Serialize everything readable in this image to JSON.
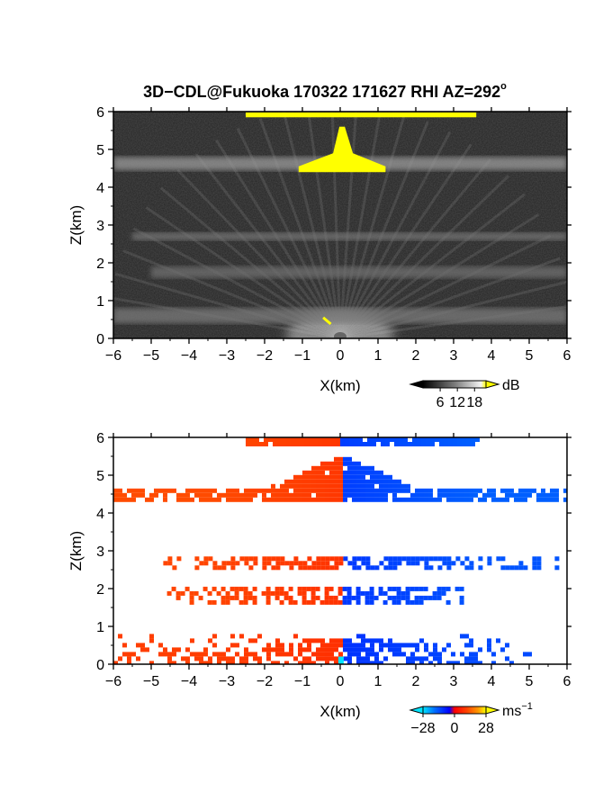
{
  "title_main": "3D−CDL@Fukuoka 170322 171627 RHI AZ=292",
  "title_degree": "o",
  "chart_data": [
    {
      "type": "heatmap",
      "quantity": "reflectivity",
      "xlabel": "X(km)",
      "ylabel": "Z(km)",
      "xlim": [
        -6,
        6
      ],
      "ylim": [
        0,
        6
      ],
      "xticks": [
        "−6",
        "−5",
        "−4",
        "−3",
        "−2",
        "−1",
        "0",
        "1",
        "2",
        "3",
        "4",
        "5",
        "6"
      ],
      "yticks": [
        "0",
        "1",
        "2",
        "3",
        "4",
        "5",
        "6"
      ],
      "colorbar": {
        "unit": "dB",
        "ticks": [
          "6",
          "12",
          "18"
        ],
        "range": [
          0,
          22
        ]
      },
      "layers": [
        {
          "z_low": 5.85,
          "z_high": 6.0,
          "x_min": -2.5,
          "x_max": 3.6,
          "value": 21
        },
        {
          "z_low": 4.45,
          "z_high": 4.8,
          "x_min": -6.0,
          "x_max": 6.0,
          "value": 13
        },
        {
          "z_low": 4.4,
          "z_high": 5.6,
          "x_min": -1.1,
          "x_max": 1.2,
          "value": 21
        },
        {
          "z_low": 2.6,
          "z_high": 2.8,
          "x_min": -5.5,
          "x_max": 6.0,
          "value": 10
        },
        {
          "z_low": 1.6,
          "z_high": 1.9,
          "x_min": -5.0,
          "x_max": 6.0,
          "value": 9
        },
        {
          "z_low": 0.4,
          "z_high": 0.8,
          "x_min": -6.0,
          "x_max": 6.0,
          "value": 10
        }
      ]
    },
    {
      "type": "heatmap",
      "quantity": "doppler_velocity",
      "xlabel": "X(km)",
      "ylabel": "Z(km)",
      "xlim": [
        -6,
        6
      ],
      "ylim": [
        0,
        6
      ],
      "xticks": [
        "−6",
        "−5",
        "−4",
        "−3",
        "−2",
        "−1",
        "0",
        "1",
        "2",
        "3",
        "4",
        "5",
        "6"
      ],
      "yticks": [
        "0",
        "1",
        "2",
        "3",
        "4",
        "5",
        "6"
      ],
      "colorbar": {
        "unit": "ms",
        "unit_exp": "−1",
        "ticks": [
          "−28",
          "0",
          "28"
        ],
        "range": [
          -28,
          28
        ]
      },
      "layers": [
        {
          "z_low": 5.85,
          "z_high": 6.0,
          "x_min": -2.5,
          "x_max": 3.6,
          "v_left": 14,
          "v_right": -14
        },
        {
          "z_low": 4.4,
          "z_high": 5.6,
          "x_min": -6.0,
          "x_max": 6.0,
          "v_left": 14,
          "v_right": -14
        },
        {
          "z_low": 2.55,
          "z_high": 2.85,
          "x_min": -4.8,
          "x_max": 5.7,
          "v_left": 12,
          "v_right": -12
        },
        {
          "z_low": 1.6,
          "z_high": 2.05,
          "x_min": -4.7,
          "x_max": 3.2,
          "v_left": 12,
          "v_right": -12
        },
        {
          "z_low": 0.0,
          "z_high": 0.8,
          "x_min": -6.0,
          "x_max": 5.0,
          "v_left": 10,
          "v_right": -10
        }
      ]
    }
  ]
}
